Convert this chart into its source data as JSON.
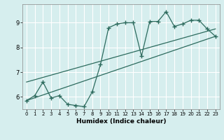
{
  "xlabel": "Humidex (Indice chaleur)",
  "bg_color": "#d6eeee",
  "grid_color": "#ffffff",
  "line_color": "#2d6b5e",
  "xlim": [
    -0.5,
    23.5
  ],
  "ylim": [
    5.5,
    9.75
  ],
  "xticks": [
    0,
    1,
    2,
    3,
    4,
    5,
    6,
    7,
    8,
    9,
    10,
    11,
    12,
    13,
    14,
    15,
    16,
    17,
    18,
    19,
    20,
    21,
    22,
    23
  ],
  "yticks": [
    6,
    7,
    8,
    9
  ],
  "curve_x": [
    0,
    1,
    2,
    3,
    4,
    5,
    6,
    7,
    8,
    9,
    10,
    11,
    12,
    13,
    14,
    15,
    16,
    17,
    18,
    19,
    20,
    21,
    22,
    23
  ],
  "curve_y": [
    5.85,
    6.05,
    6.6,
    5.95,
    6.05,
    5.7,
    5.65,
    5.6,
    6.2,
    7.3,
    8.8,
    8.95,
    9.0,
    9.0,
    7.65,
    9.05,
    9.05,
    9.45,
    8.85,
    8.95,
    9.1,
    9.1,
    8.75,
    8.45
  ],
  "line1_x": [
    0,
    23
  ],
  "line1_y": [
    5.85,
    8.45
  ],
  "line2_x": [
    0,
    23
  ],
  "line2_y": [
    6.6,
    8.75
  ]
}
